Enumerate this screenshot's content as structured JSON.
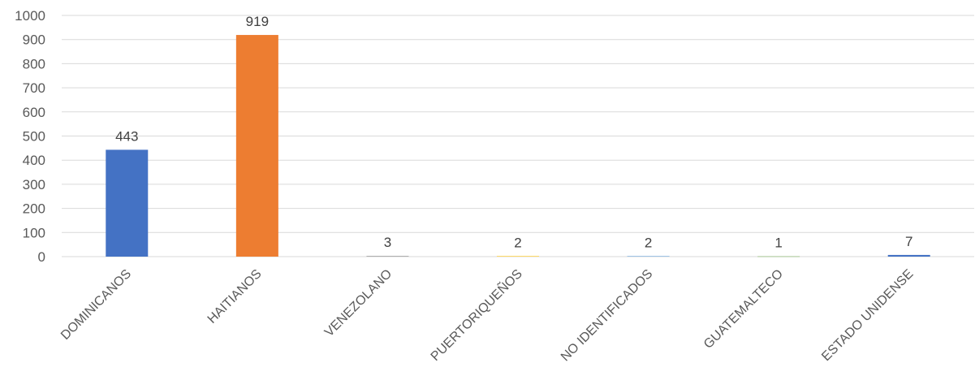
{
  "chart_data": {
    "type": "bar",
    "title": "",
    "xlabel": "",
    "ylabel": "",
    "ylim": [
      0,
      1000
    ],
    "yticks": [
      0,
      100,
      200,
      300,
      400,
      500,
      600,
      700,
      800,
      900,
      1000
    ],
    "grid": true,
    "legend": "none",
    "categories": [
      "DOMINICANOS",
      "HAITIANOS",
      "VENEZOLANO",
      "PUERTORIQUEÑOS",
      "NO IDENTIFICADOS",
      "GUATEMALTECO",
      "ESTADO UNIDENSE"
    ],
    "values": [
      443,
      919,
      3,
      2,
      2,
      1,
      7
    ],
    "data_labels": [
      "443",
      "919",
      "3",
      "2",
      "2",
      "1",
      "7"
    ],
    "colors": [
      "#4472C4",
      "#ED7D31",
      "#A5A5A5",
      "#FFC000",
      "#5B9BD5",
      "#70AD47",
      "#4472C4"
    ]
  }
}
